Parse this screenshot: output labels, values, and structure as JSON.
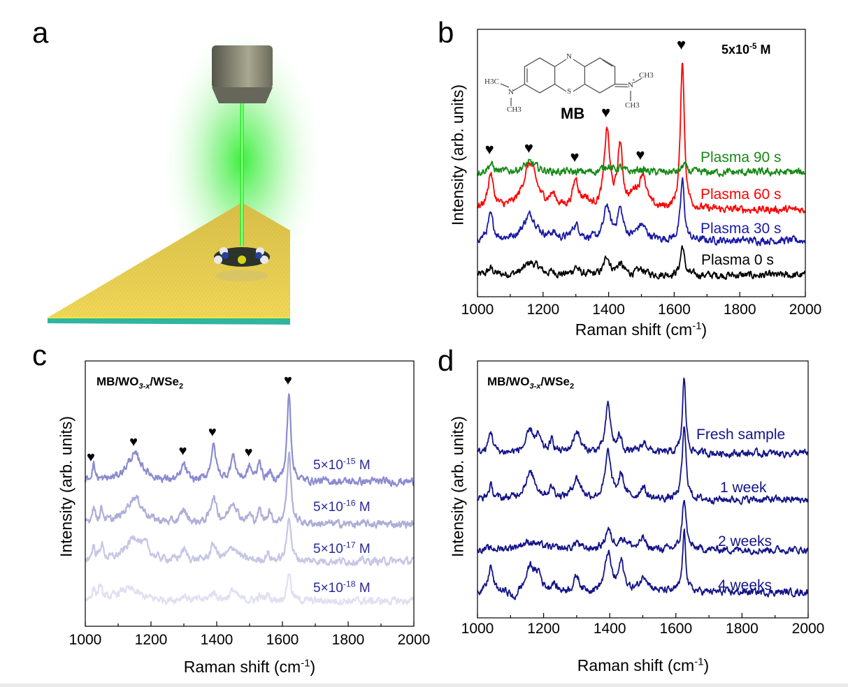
{
  "panels": {
    "a": "a",
    "b": "b",
    "c": "c",
    "d": "d"
  },
  "illustration": {
    "beam_color": "#22ee22",
    "substrate_color": "#e6c94a",
    "base_color": "#2fb5a0",
    "objective_color": "#77776a"
  },
  "molecule": {
    "name": "MB",
    "atoms": {
      "n_ring": "N",
      "s_ring": "S",
      "left_n": "N",
      "right_n": "N",
      "plus": "+",
      "h3c": "H3C",
      "ch3_a": "CH3",
      "ch3_b": "CH3",
      "ch3_c": "CH3"
    }
  },
  "chart_data": [
    {
      "id": "b",
      "type": "line",
      "xlabel": {
        "main": "Raman shift (cm",
        "sup": "-1",
        "end": ")"
      },
      "ylabel": "Intensity (arb. units)",
      "xlim": [
        1000,
        2000
      ],
      "xticks": [
        "1000",
        "1200",
        "1400",
        "1600",
        "1800",
        "2000"
      ],
      "yticks_shown": false,
      "annotation": {
        "main": "5x10",
        "sup": "-5",
        "end": " M"
      },
      "peak_markers": [
        1040,
        1160,
        1300,
        1395,
        1500,
        1625
      ],
      "marker_symbol": "♥",
      "series": [
        {
          "name": "Plasma 0 s",
          "color": "#000000",
          "baseline": 0.8,
          "peaks": [
            [
              1040,
              0.25,
              10
            ],
            [
              1160,
              0.45,
              22
            ],
            [
              1185,
              0.15,
              10
            ],
            [
              1230,
              0.1,
              10
            ],
            [
              1300,
              0.3,
              10
            ],
            [
              1395,
              0.7,
              10
            ],
            [
              1435,
              0.4,
              12
            ],
            [
              1500,
              0.2,
              15
            ],
            [
              1625,
              1.1,
              7
            ]
          ]
        },
        {
          "name": "Plasma 30 s",
          "color": "#1a1aa6",
          "baseline": 2.1,
          "peaks": [
            [
              1040,
              0.9,
              10
            ],
            [
              1160,
              0.95,
              25
            ],
            [
              1230,
              0.2,
              10
            ],
            [
              1300,
              0.55,
              14
            ],
            [
              1395,
              1.25,
              11
            ],
            [
              1435,
              1.1,
              11
            ],
            [
              1500,
              0.55,
              18
            ],
            [
              1625,
              2.25,
              7
            ]
          ]
        },
        {
          "name": "Plasma 60 s",
          "color": "#ff0000",
          "baseline": 3.25,
          "peaks": [
            [
              1040,
              1.3,
              10
            ],
            [
              1160,
              1.7,
              25
            ],
            [
              1230,
              0.4,
              12
            ],
            [
              1300,
              1.05,
              11
            ],
            [
              1330,
              0.3,
              10
            ],
            [
              1395,
              2.9,
              10
            ],
            [
              1435,
              2.3,
              9
            ],
            [
              1480,
              0.5,
              15
            ],
            [
              1505,
              1.2,
              12
            ],
            [
              1625,
              5.6,
              7
            ]
          ]
        },
        {
          "name": "Plasma 90 s",
          "color": "#178a17",
          "baseline": 4.65,
          "peaks": [
            [
              1040,
              0.3,
              10
            ],
            [
              1160,
              0.35,
              25
            ],
            [
              1395,
              0.25,
              15
            ],
            [
              1435,
              0.15,
              10
            ],
            [
              1500,
              0.1,
              15
            ],
            [
              1630,
              0.3,
              8
            ]
          ]
        }
      ]
    },
    {
      "id": "c",
      "type": "line",
      "xlabel": {
        "main": "Raman shift (cm",
        "sup": "-1",
        "end": ")"
      },
      "ylabel": "Intensity (arb. units)",
      "xlim": [
        1000,
        2000
      ],
      "xticks": [
        "1000",
        "1200",
        "1400",
        "1600",
        "1800",
        "2000"
      ],
      "yticks_shown": false,
      "annotation": {
        "main": "MB/WO",
        "sub1": "3-x",
        "mid": "/WSe",
        "sub2": "2"
      },
      "peak_markers": [
        1020,
        1150,
        1300,
        1390,
        1500,
        1620
      ],
      "marker_symbol": "♥",
      "series": [
        {
          "name": {
            "main": "5×10",
            "sup": "-18",
            "end": " M"
          },
          "color": "#e0e0f2",
          "baseline": 0.95,
          "peaks": [
            [
              1025,
              0.4,
              6
            ],
            [
              1045,
              0.5,
              6
            ],
            [
              1130,
              0.45,
              40
            ],
            [
              1300,
              0.2,
              10
            ],
            [
              1390,
              0.3,
              12
            ],
            [
              1450,
              0.4,
              12
            ],
            [
              1530,
              0.15,
              6
            ],
            [
              1555,
              0.25,
              6
            ],
            [
              1620,
              1.1,
              7
            ]
          ]
        },
        {
          "name": {
            "main": "5×10",
            "sup": "-17",
            "end": " M"
          },
          "color": "#c6c6e6",
          "baseline": 2.45,
          "peaks": [
            [
              1025,
              0.5,
              6
            ],
            [
              1050,
              0.6,
              6
            ],
            [
              1150,
              0.9,
              30
            ],
            [
              1185,
              0.3,
              10
            ],
            [
              1300,
              0.4,
              10
            ],
            [
              1390,
              0.6,
              10
            ],
            [
              1450,
              0.5,
              18
            ],
            [
              1555,
              0.3,
              6
            ],
            [
              1620,
              1.75,
              7
            ]
          ]
        },
        {
          "name": {
            "main": "5×10",
            "sup": "-16",
            "end": " M"
          },
          "color": "#aeaed8",
          "baseline": 3.85,
          "peaks": [
            [
              1025,
              0.6,
              6
            ],
            [
              1050,
              0.5,
              6
            ],
            [
              1150,
              1.0,
              30
            ],
            [
              1300,
              0.5,
              10
            ],
            [
              1390,
              1.0,
              10
            ],
            [
              1450,
              0.8,
              15
            ],
            [
              1500,
              0.3,
              6
            ],
            [
              1530,
              0.5,
              6
            ],
            [
              1560,
              0.5,
              6
            ],
            [
              1620,
              2.7,
              7
            ]
          ]
        },
        {
          "name": {
            "main": "5×10",
            "sup": "-15",
            "end": " M"
          },
          "color": "#8c8cd0",
          "baseline": 5.45,
          "peaks": [
            [
              1025,
              0.6,
              6
            ],
            [
              1150,
              1.0,
              30
            ],
            [
              1300,
              0.6,
              9
            ],
            [
              1390,
              1.3,
              10
            ],
            [
              1450,
              0.9,
              10
            ],
            [
              1500,
              0.5,
              8
            ],
            [
              1530,
              0.8,
              6
            ],
            [
              1560,
              0.3,
              6
            ],
            [
              1620,
              3.3,
              7
            ]
          ]
        }
      ]
    },
    {
      "id": "d",
      "type": "line",
      "xlabel": {
        "main": "Raman shift (cm",
        "sup": "-1",
        "end": ")"
      },
      "ylabel": "Intensity (arb. units)",
      "xlim": [
        1000,
        2000
      ],
      "xticks": [
        "1000",
        "1200",
        "1400",
        "1600",
        "1800",
        "2000"
      ],
      "yticks_shown": false,
      "annotation": {
        "main": "MB/WO",
        "sub1": "3-x",
        "mid": "/WSe",
        "sub2": "2"
      },
      "series": [
        {
          "name": "4 weeks",
          "color": "#14148a",
          "baseline": 1.0,
          "peaks": [
            [
              1040,
              1.0,
              8
            ],
            [
              1110,
              -0.4,
              8
            ],
            [
              1160,
              1.0,
              15
            ],
            [
              1185,
              0.6,
              10
            ],
            [
              1230,
              0.3,
              8
            ],
            [
              1300,
              0.6,
              10
            ],
            [
              1395,
              1.5,
              11
            ],
            [
              1435,
              1.1,
              10
            ],
            [
              1505,
              0.6,
              15
            ],
            [
              1625,
              2.3,
              6
            ]
          ]
        },
        {
          "name": "2 weeks",
          "color": "#14148a",
          "baseline": 2.65,
          "peaks": [
            [
              1160,
              0.3,
              40
            ],
            [
              1300,
              0.3,
              8
            ],
            [
              1395,
              0.75,
              10
            ],
            [
              1440,
              0.4,
              20
            ],
            [
              1500,
              0.45,
              8
            ],
            [
              1625,
              2.0,
              7
            ]
          ]
        },
        {
          "name": "1 week",
          "color": "#14148a",
          "baseline": 4.6,
          "peaks": [
            [
              1040,
              0.5,
              8
            ],
            [
              1160,
              1.0,
              20
            ],
            [
              1225,
              0.4,
              10
            ],
            [
              1300,
              0.8,
              15
            ],
            [
              1395,
              1.8,
              10
            ],
            [
              1435,
              0.9,
              10
            ],
            [
              1500,
              0.5,
              10
            ],
            [
              1625,
              2.8,
              7
            ]
          ]
        },
        {
          "name": "Fresh sample",
          "color": "#14148a",
          "baseline": 6.4,
          "peaks": [
            [
              1040,
              0.85,
              8
            ],
            [
              1160,
              0.85,
              15
            ],
            [
              1185,
              0.5,
              8
            ],
            [
              1225,
              0.45,
              8
            ],
            [
              1300,
              0.85,
              12
            ],
            [
              1395,
              1.9,
              9
            ],
            [
              1430,
              0.6,
              8
            ],
            [
              1505,
              0.4,
              12
            ],
            [
              1625,
              2.9,
              6
            ]
          ]
        }
      ]
    }
  ]
}
